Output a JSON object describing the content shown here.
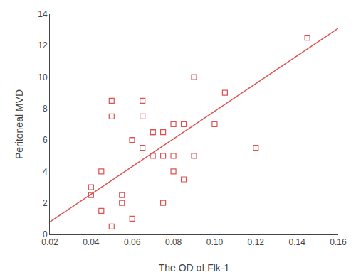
{
  "chart_data": {
    "type": "scatter",
    "xlabel": "The OD of Flk-1",
    "ylabel": "Peritoneal MVD",
    "series": [
      {
        "type": "scatter",
        "color": "#e05050",
        "marker": "square",
        "x": [
          0.04,
          0.04,
          0.045,
          0.045,
          0.05,
          0.05,
          0.05,
          0.055,
          0.055,
          0.06,
          0.06,
          0.06,
          0.065,
          0.065,
          0.065,
          0.07,
          0.07,
          0.07,
          0.075,
          0.075,
          0.075,
          0.08,
          0.08,
          0.08,
          0.085,
          0.085,
          0.09,
          0.09,
          0.1,
          0.105,
          0.12,
          0.145
        ],
        "values": [
          3.0,
          2.5,
          1.5,
          4.0,
          0.5,
          8.5,
          7.5,
          2.5,
          2.0,
          6.0,
          6.0,
          1.0,
          5.5,
          7.5,
          8.5,
          6.5,
          6.5,
          5.0,
          6.5,
          5.0,
          2.0,
          5.0,
          4.0,
          7.0,
          3.5,
          7.0,
          10.0,
          5.0,
          7.0,
          9.0,
          5.5,
          12.5
        ]
      },
      {
        "type": "line",
        "color": "#e05050",
        "x": [
          0.02,
          0.16
        ],
        "values": [
          0.8,
          13.1
        ]
      }
    ],
    "xlim": [
      0.02,
      0.16
    ],
    "ylim": [
      0,
      14
    ],
    "xticks": [
      0.02,
      0.04,
      0.06,
      0.08,
      {
        "value": 0.1,
        "label": "0.10"
      },
      0.12,
      0.14,
      0.16
    ],
    "yticks": [
      0,
      2,
      4,
      6,
      8,
      10,
      12,
      14
    ],
    "grid": false
  }
}
